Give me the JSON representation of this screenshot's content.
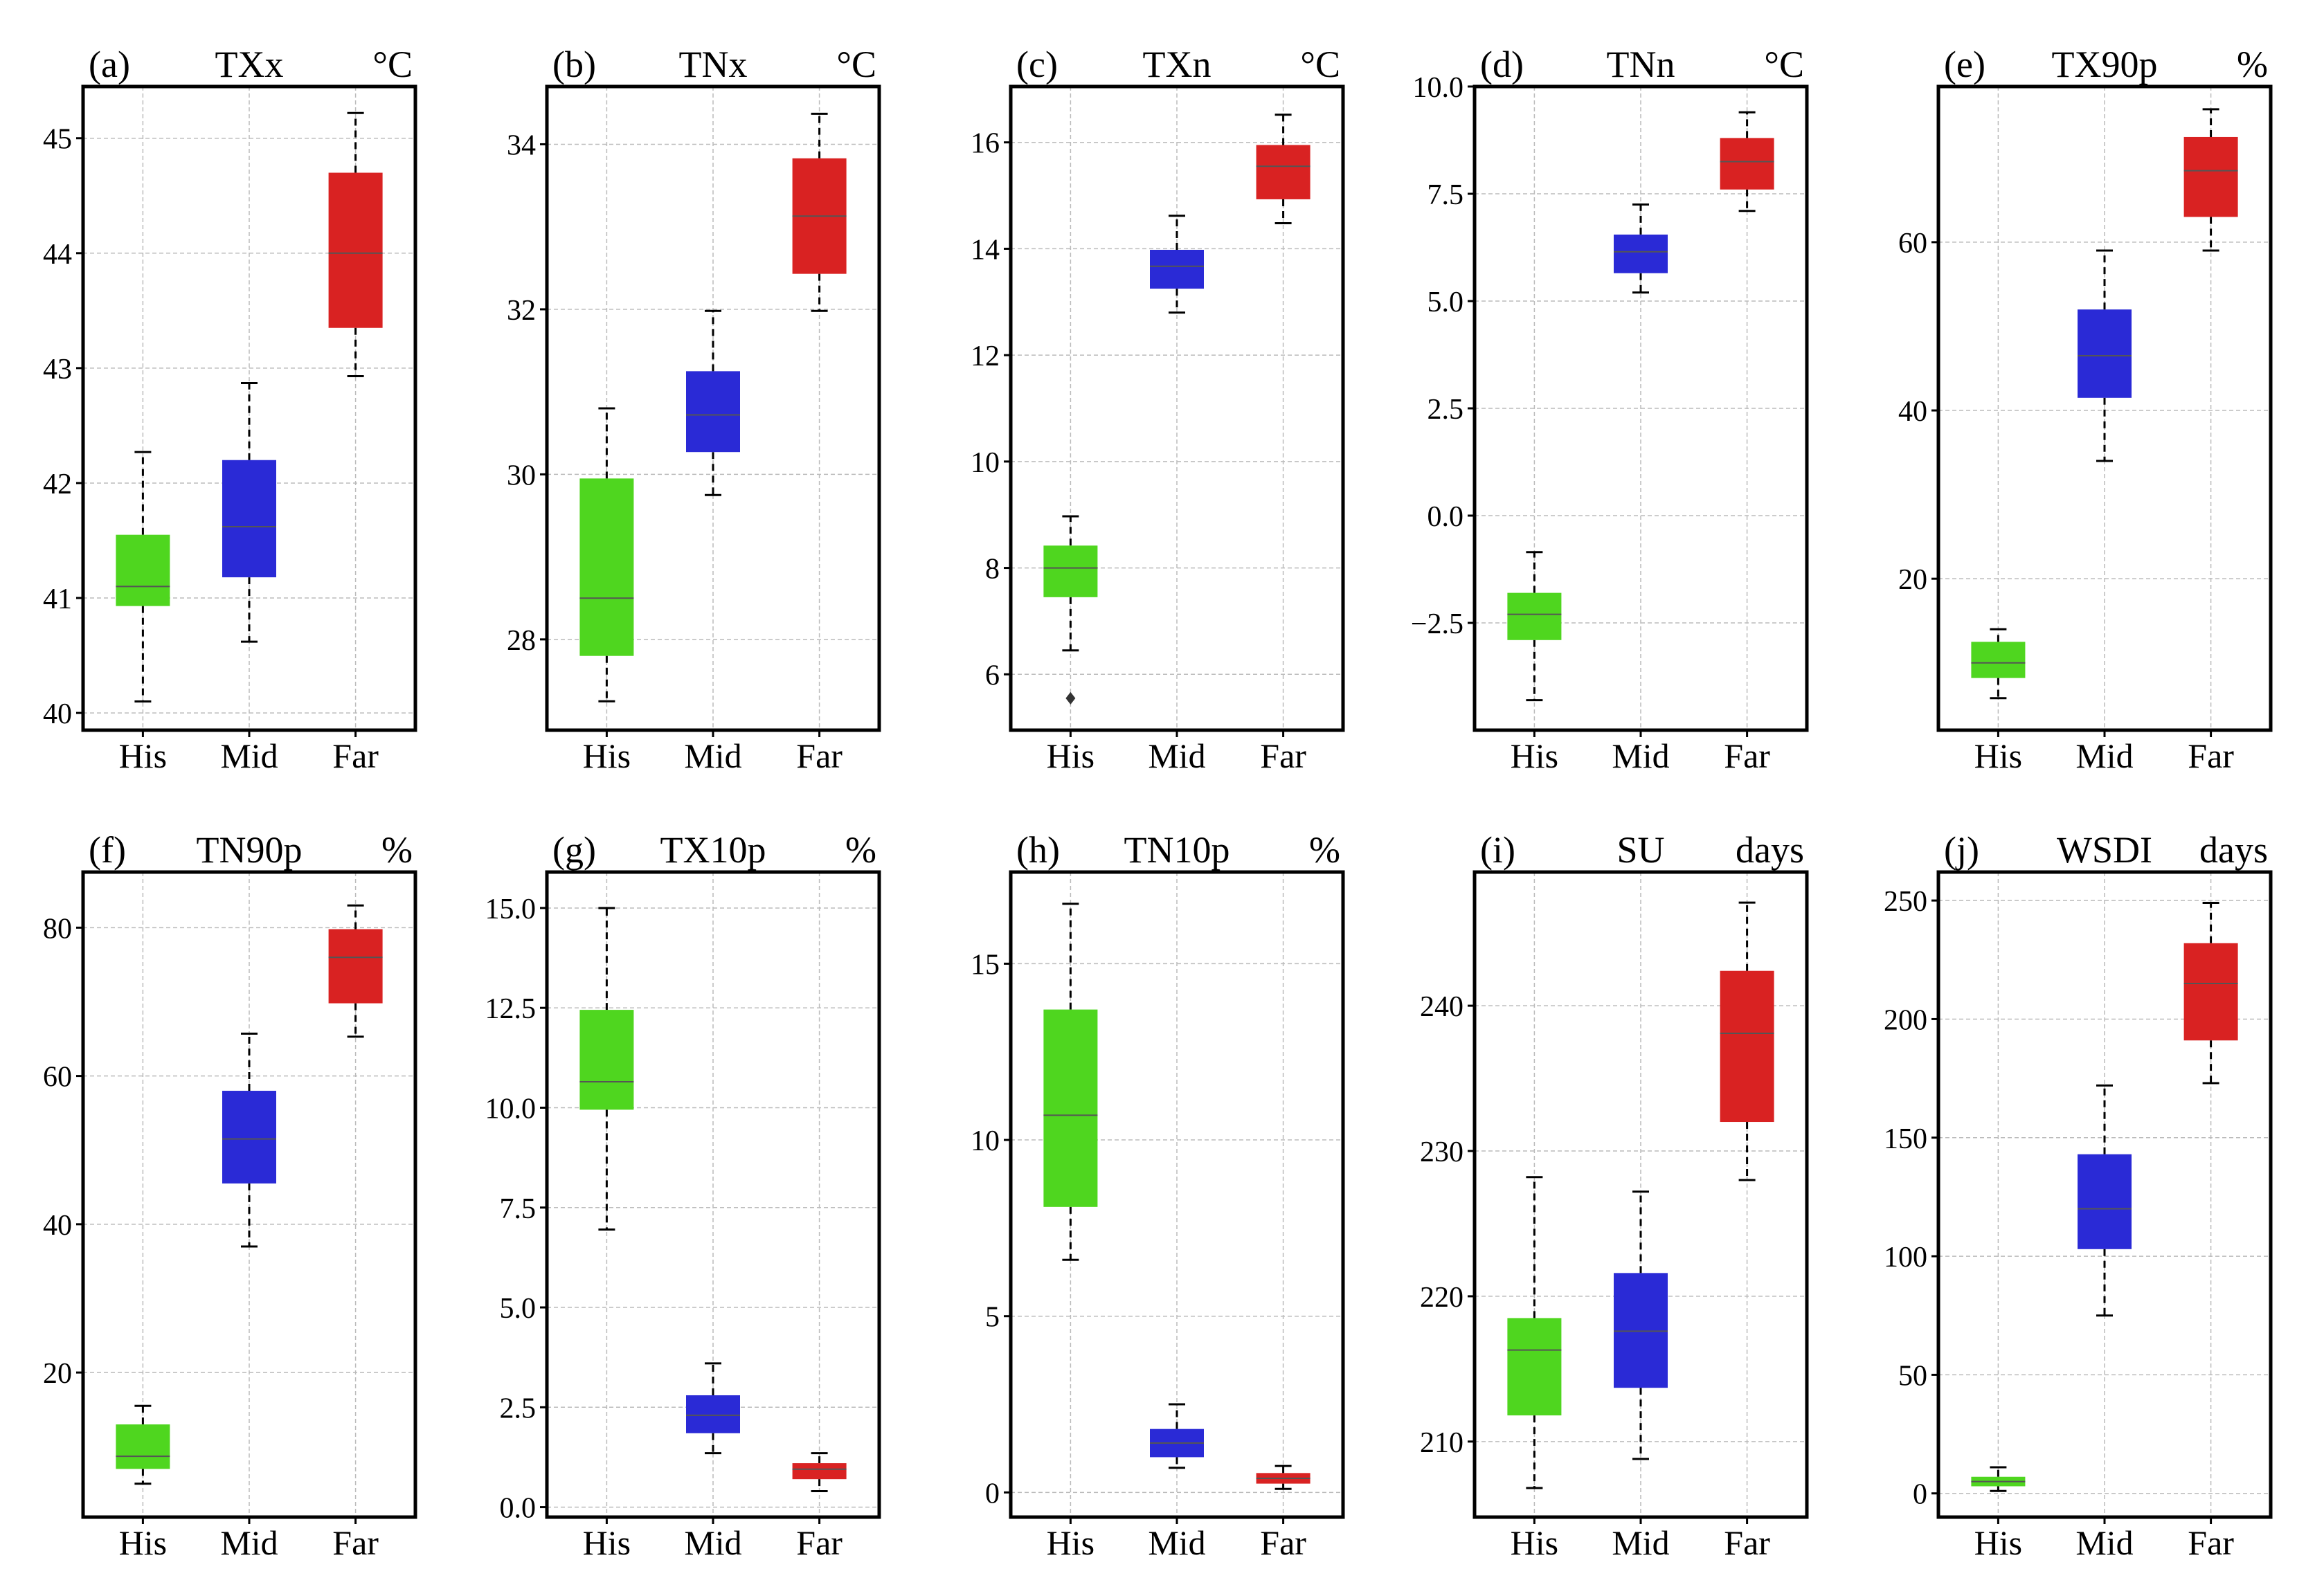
{
  "chart_data": [
    {
      "type": "box",
      "panel": "(a)",
      "title": "TXx",
      "unit": "°C",
      "categories": [
        "His",
        "Mid",
        "Far"
      ],
      "ylim": [
        39.85,
        45.45
      ],
      "yticks": [
        40,
        41,
        42,
        43,
        44,
        45
      ],
      "ytick_labels": [
        "40",
        "41",
        "42",
        "43",
        "44",
        "45"
      ],
      "grid": true,
      "boxes": [
        {
          "min": 40.1,
          "q1": 40.93,
          "median": 41.1,
          "q3": 41.55,
          "max": 42.27
        },
        {
          "min": 40.62,
          "q1": 41.18,
          "median": 41.62,
          "q3": 42.2,
          "max": 42.87
        },
        {
          "min": 42.93,
          "q1": 43.35,
          "median": 44.0,
          "q3": 44.7,
          "max": 45.22
        }
      ],
      "outliers": []
    },
    {
      "type": "box",
      "panel": "(b)",
      "title": "TNx",
      "unit": "°C",
      "categories": [
        "His",
        "Mid",
        "Far"
      ],
      "ylim": [
        26.9,
        34.7
      ],
      "yticks": [
        28,
        30,
        32,
        34
      ],
      "ytick_labels": [
        "28",
        "30",
        "32",
        "34"
      ],
      "grid": true,
      "boxes": [
        {
          "min": 27.25,
          "q1": 27.8,
          "median": 28.5,
          "q3": 29.95,
          "max": 30.8
        },
        {
          "min": 29.75,
          "q1": 30.27,
          "median": 30.72,
          "q3": 31.25,
          "max": 31.98
        },
        {
          "min": 31.98,
          "q1": 32.43,
          "median": 33.13,
          "q3": 33.83,
          "max": 34.37
        }
      ],
      "outliers": []
    },
    {
      "type": "box",
      "panel": "(c)",
      "title": "TXn",
      "unit": "°C",
      "categories": [
        "His",
        "Mid",
        "Far"
      ],
      "ylim": [
        4.95,
        17.05
      ],
      "yticks": [
        6,
        8,
        10,
        12,
        14,
        16
      ],
      "ytick_labels": [
        "6",
        "8",
        "10",
        "12",
        "14",
        "16"
      ],
      "grid": true,
      "boxes": [
        {
          "min": 6.45,
          "q1": 7.45,
          "median": 8.0,
          "q3": 8.42,
          "max": 8.97
        },
        {
          "min": 12.8,
          "q1": 13.25,
          "median": 13.67,
          "q3": 13.98,
          "max": 14.62
        },
        {
          "min": 14.48,
          "q1": 14.93,
          "median": 15.55,
          "q3": 15.95,
          "max": 16.52
        }
      ],
      "outliers": [
        {
          "category": "His",
          "value": 5.55
        }
      ]
    },
    {
      "type": "box",
      "panel": "(d)",
      "title": "TNn",
      "unit": "°C",
      "categories": [
        "His",
        "Mid",
        "Far"
      ],
      "ylim": [
        -5.0,
        10.0
      ],
      "yticks": [
        -2.5,
        0,
        2.5,
        5,
        7.5,
        10
      ],
      "ytick_labels": [
        "−2.5",
        "0.0",
        "2.5",
        "5.0",
        "7.5",
        "10.0"
      ],
      "grid": true,
      "boxes": [
        {
          "min": -4.3,
          "q1": -2.9,
          "median": -2.3,
          "q3": -1.8,
          "max": -0.85
        },
        {
          "min": 5.2,
          "q1": 5.65,
          "median": 6.15,
          "q3": 6.55,
          "max": 7.25
        },
        {
          "min": 7.1,
          "q1": 7.6,
          "median": 8.25,
          "q3": 8.8,
          "max": 9.4
        }
      ],
      "outliers": []
    },
    {
      "type": "box",
      "panel": "(e)",
      "title": "TX90p",
      "unit": "%",
      "categories": [
        "His",
        "Mid",
        "Far"
      ],
      "ylim": [
        2.0,
        78.5
      ],
      "yticks": [
        20,
        40,
        60
      ],
      "ytick_labels": [
        "20",
        "40",
        "60"
      ],
      "grid": true,
      "boxes": [
        {
          "min": 5.8,
          "q1": 8.2,
          "median": 10.0,
          "q3": 12.5,
          "max": 14.0
        },
        {
          "min": 34.0,
          "q1": 41.5,
          "median": 46.5,
          "q3": 52.0,
          "max": 59.0
        },
        {
          "min": 59.0,
          "q1": 63.0,
          "median": 68.5,
          "q3": 72.5,
          "max": 75.8
        }
      ],
      "outliers": []
    },
    {
      "type": "box",
      "panel": "(f)",
      "title": "TN90p",
      "unit": "%",
      "categories": [
        "His",
        "Mid",
        "Far"
      ],
      "ylim": [
        0.5,
        87.5
      ],
      "yticks": [
        20,
        40,
        60,
        80
      ],
      "ytick_labels": [
        "20",
        "40",
        "60",
        "80"
      ],
      "grid": true,
      "boxes": [
        {
          "min": 5.0,
          "q1": 7.0,
          "median": 8.7,
          "q3": 13.0,
          "max": 15.5
        },
        {
          "min": 37.0,
          "q1": 45.5,
          "median": 51.5,
          "q3": 58.0,
          "max": 65.7
        },
        {
          "min": 65.3,
          "q1": 69.8,
          "median": 76.0,
          "q3": 79.8,
          "max": 83.0
        }
      ],
      "outliers": []
    },
    {
      "type": "box",
      "panel": "(g)",
      "title": "TX10p",
      "unit": "%",
      "categories": [
        "His",
        "Mid",
        "Far"
      ],
      "ylim": [
        -0.25,
        15.9
      ],
      "yticks": [
        0,
        2.5,
        5,
        7.5,
        10,
        12.5,
        15
      ],
      "ytick_labels": [
        "0.0",
        "2.5",
        "5.0",
        "7.5",
        "10.0",
        "12.5",
        "15.0"
      ],
      "grid": true,
      "boxes": [
        {
          "min": 6.95,
          "q1": 9.95,
          "median": 10.65,
          "q3": 12.45,
          "max": 15.0
        },
        {
          "min": 1.35,
          "q1": 1.85,
          "median": 2.3,
          "q3": 2.8,
          "max": 3.6
        },
        {
          "min": 0.4,
          "q1": 0.7,
          "median": 0.95,
          "q3": 1.1,
          "max": 1.35
        }
      ],
      "outliers": []
    },
    {
      "type": "box",
      "panel": "(h)",
      "title": "TN10p",
      "unit": "%",
      "categories": [
        "His",
        "Mid",
        "Far"
      ],
      "ylim": [
        -0.7,
        17.6
      ],
      "yticks": [
        0,
        5,
        10,
        15
      ],
      "ytick_labels": [
        "0",
        "5",
        "10",
        "15"
      ],
      "grid": true,
      "boxes": [
        {
          "min": 6.6,
          "q1": 8.1,
          "median": 10.7,
          "q3": 13.7,
          "max": 16.7
        },
        {
          "min": 0.7,
          "q1": 1.0,
          "median": 1.4,
          "q3": 1.8,
          "max": 2.5
        },
        {
          "min": 0.1,
          "q1": 0.25,
          "median": 0.4,
          "q3": 0.55,
          "max": 0.75
        }
      ],
      "outliers": []
    },
    {
      "type": "box",
      "panel": "(i)",
      "title": "SU",
      "unit": "days",
      "categories": [
        "His",
        "Mid",
        "Far"
      ],
      "ylim": [
        204.8,
        249.2
      ],
      "yticks": [
        210,
        220,
        230,
        240
      ],
      "ytick_labels": [
        "210",
        "220",
        "230",
        "240"
      ],
      "grid": true,
      "boxes": [
        {
          "min": 206.8,
          "q1": 211.8,
          "median": 216.3,
          "q3": 218.5,
          "max": 228.2
        },
        {
          "min": 208.8,
          "q1": 213.7,
          "median": 217.6,
          "q3": 221.6,
          "max": 227.2
        },
        {
          "min": 228.0,
          "q1": 232.0,
          "median": 238.1,
          "q3": 242.4,
          "max": 247.1
        }
      ],
      "outliers": []
    },
    {
      "type": "box",
      "panel": "(j)",
      "title": "WSDI",
      "unit": "days",
      "categories": [
        "His",
        "Mid",
        "Far"
      ],
      "ylim": [
        -10.0,
        262.0
      ],
      "yticks": [
        0,
        50,
        100,
        150,
        200,
        250
      ],
      "ytick_labels": [
        "0",
        "50",
        "100",
        "150",
        "200",
        "250"
      ],
      "grid": true,
      "boxes": [
        {
          "min": 1.0,
          "q1": 3.0,
          "median": 5.0,
          "q3": 7.0,
          "max": 11.0
        },
        {
          "min": 75.0,
          "q1": 103.0,
          "median": 120.0,
          "q3": 143.0,
          "max": 172.0
        },
        {
          "min": 173.0,
          "q1": 191.0,
          "median": 215.0,
          "q3": 232.0,
          "max": 249.0
        }
      ],
      "outliers": []
    }
  ],
  "colors": {
    "His": "#4fd61f",
    "Mid": "#2a2ad6",
    "Far": "#d92222",
    "median": "#555555",
    "grid": "#bbbbbb",
    "frame": "#000000"
  }
}
